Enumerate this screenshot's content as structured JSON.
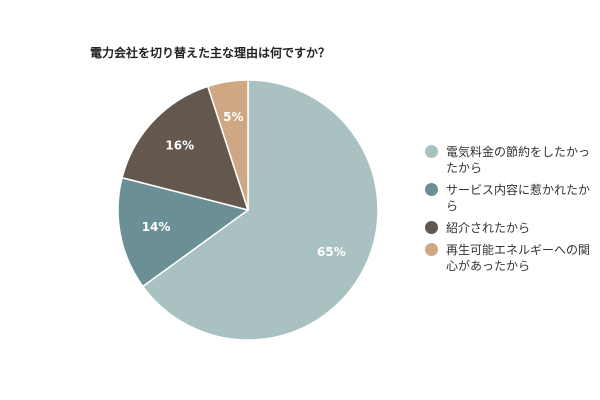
{
  "chart_data": {
    "type": "pie",
    "title": "電力会社を切り替えた主な理由は何ですか？",
    "legend_position": "right",
    "slices": [
      {
        "label_lines": [
          "電気料金の節約をしたかっ",
          "たから"
        ],
        "value": 65,
        "display": "65%",
        "color": "#aac1c1"
      },
      {
        "label_lines": [
          "サービス内容に惹かれたか",
          "ら"
        ],
        "value": 14,
        "display": "14%",
        "color": "#6a8f95"
      },
      {
        "label_lines": [
          "紹介されたから"
        ],
        "value": 16,
        "display": "16%",
        "color": "#63574e"
      },
      {
        "label_lines": [
          "再生可能エネルギーへの関",
          "心があったから"
        ],
        "value": 5,
        "display": "5%",
        "color": "#cfa883"
      }
    ]
  }
}
